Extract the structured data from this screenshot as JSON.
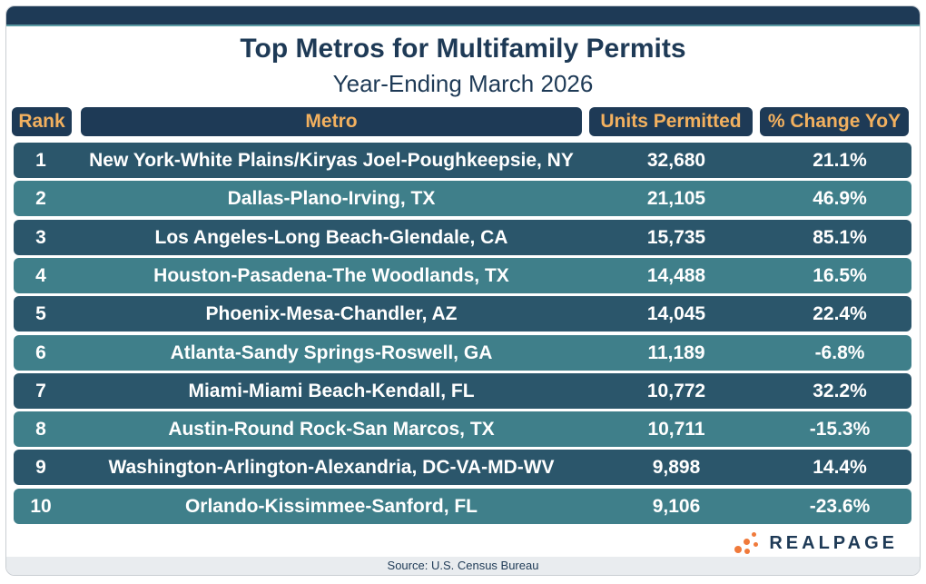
{
  "header": {
    "title": "Top Metros for Multifamily Permits",
    "subtitle": "Year-Ending March 2026"
  },
  "columns": {
    "rank": "Rank",
    "metro": "Metro",
    "units": "Units Permitted",
    "change": "% Change YoY"
  },
  "chart_data": {
    "type": "table",
    "title": "Top Metros for Multifamily Permits",
    "subtitle": "Year-Ending March 2026",
    "columns": [
      "Rank",
      "Metro",
      "Units Permitted",
      "% Change YoY"
    ],
    "rows": [
      {
        "rank": "1",
        "metro": "New York-White Plains/Kiryas Joel-Poughkeepsie, NY",
        "units": "32,680",
        "change": "21.1%"
      },
      {
        "rank": "2",
        "metro": "Dallas-Plano-Irving, TX",
        "units": "21,105",
        "change": "46.9%"
      },
      {
        "rank": "3",
        "metro": "Los Angeles-Long Beach-Glendale, CA",
        "units": "15,735",
        "change": "85.1%"
      },
      {
        "rank": "4",
        "metro": "Houston-Pasadena-The Woodlands, TX",
        "units": "14,488",
        "change": "16.5%"
      },
      {
        "rank": "5",
        "metro": "Phoenix-Mesa-Chandler, AZ",
        "units": "14,045",
        "change": "22.4%"
      },
      {
        "rank": "6",
        "metro": "Atlanta-Sandy Springs-Roswell, GA",
        "units": "11,189",
        "change": "-6.8%"
      },
      {
        "rank": "7",
        "metro": "Miami-Miami Beach-Kendall, FL",
        "units": "10,772",
        "change": "32.2%"
      },
      {
        "rank": "8",
        "metro": "Austin-Round Rock-San Marcos, TX",
        "units": "10,711",
        "change": "-15.3%"
      },
      {
        "rank": "9",
        "metro": "Washington-Arlington-Alexandria, DC-VA-MD-WV",
        "units": "9,898",
        "change": "14.4%"
      },
      {
        "rank": "10",
        "metro": "Orlando-Kissimmee-Sanford, FL",
        "units": "9,106",
        "change": "-23.6%"
      }
    ]
  },
  "footer": {
    "source": "Source: U.S. Census Bureau",
    "brand": "REALPAGE",
    "brand_icon": "realpage-dots-logo"
  },
  "colors": {
    "navy": "#1e3a56",
    "teal_dark": "#2b566b",
    "teal_light": "#3f7f8a",
    "header_text": "#f2b05f",
    "accent_orange": "#f07a3b"
  }
}
